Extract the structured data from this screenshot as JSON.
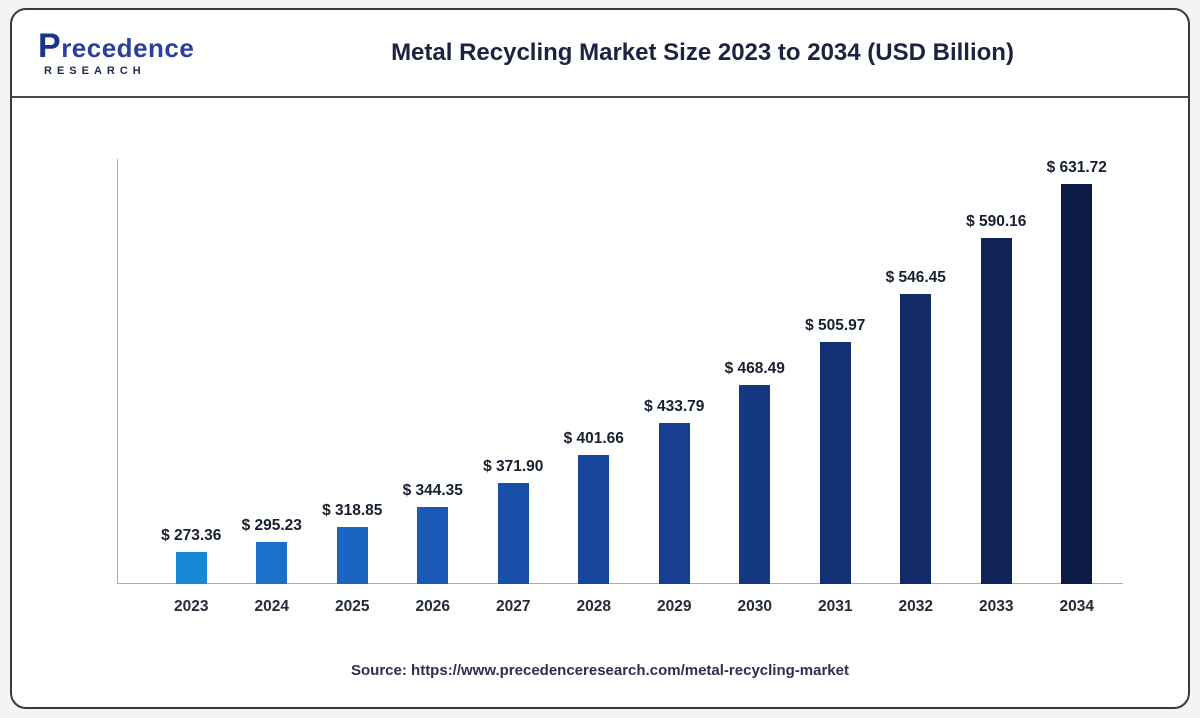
{
  "brand": {
    "name": "Precedence",
    "subtitle": "RESEARCH"
  },
  "header": {
    "title": "Metal Recycling Market Size 2023 to 2034 (USD Billion)"
  },
  "footer": {
    "source": "Source: https://www.precedenceresearch.com/metal-recycling-market"
  },
  "chart_data": {
    "type": "bar",
    "title": "Metal Recycling Market Size 2023 to 2034 (USD Billion)",
    "unit": "USD Billion",
    "categories": [
      "2023",
      "2024",
      "2025",
      "2026",
      "2027",
      "2028",
      "2029",
      "2030",
      "2031",
      "2032",
      "2033",
      "2034"
    ],
    "values": [
      273.36,
      295.23,
      318.85,
      344.35,
      371.9,
      401.66,
      433.79,
      468.49,
      505.97,
      546.45,
      590.16,
      631.72
    ],
    "value_prefix": "$ ",
    "xlabel": "",
    "ylabel": "",
    "ylim": [
      0,
      700
    ],
    "grid": false,
    "legend": false,
    "bar_colors": [
      "#1787d8",
      "#1c6fca",
      "#1c64c2",
      "#1b59b6",
      "#1a4fa9",
      "#19469c",
      "#173e90",
      "#163883",
      "#143075",
      "#122a67",
      "#0f2357",
      "#0c1b45"
    ]
  }
}
